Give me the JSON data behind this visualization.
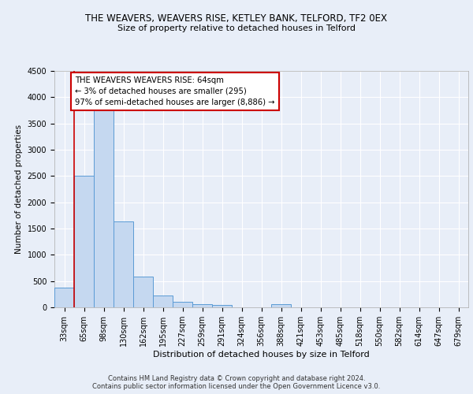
{
  "title_line1": "THE WEAVERS, WEAVERS RISE, KETLEY BANK, TELFORD, TF2 0EX",
  "title_line2": "Size of property relative to detached houses in Telford",
  "xlabel": "Distribution of detached houses by size in Telford",
  "ylabel": "Number of detached properties",
  "footer_line1": "Contains HM Land Registry data © Crown copyright and database right 2024.",
  "footer_line2": "Contains public sector information licensed under the Open Government Licence v3.0.",
  "categories": [
    "33sqm",
    "65sqm",
    "98sqm",
    "130sqm",
    "162sqm",
    "195sqm",
    "227sqm",
    "259sqm",
    "291sqm",
    "324sqm",
    "356sqm",
    "388sqm",
    "421sqm",
    "453sqm",
    "485sqm",
    "518sqm",
    "550sqm",
    "582sqm",
    "614sqm",
    "647sqm",
    "679sqm"
  ],
  "values": [
    370,
    2500,
    3750,
    1640,
    590,
    230,
    105,
    60,
    40,
    0,
    0,
    60,
    0,
    0,
    0,
    0,
    0,
    0,
    0,
    0,
    0
  ],
  "bar_color": "#c5d8f0",
  "bar_edge_color": "#5b9bd5",
  "ylim": [
    0,
    4500
  ],
  "yticks": [
    0,
    500,
    1000,
    1500,
    2000,
    2500,
    3000,
    3500,
    4000,
    4500
  ],
  "annotation_box_text": "THE WEAVERS WEAVERS RISE: 64sqm\n← 3% of detached houses are smaller (295)\n97% of semi-detached houses are larger (8,886) →",
  "annotation_box_color": "#cc0000",
  "bg_color": "#e8eef8",
  "plot_bg_color": "#e8eef8",
  "grid_color": "#ffffff",
  "title1_fontsize": 8.5,
  "title2_fontsize": 8.0,
  "ylabel_fontsize": 7.5,
  "xlabel_fontsize": 8.0,
  "tick_fontsize": 7.0,
  "footer_fontsize": 6.0
}
